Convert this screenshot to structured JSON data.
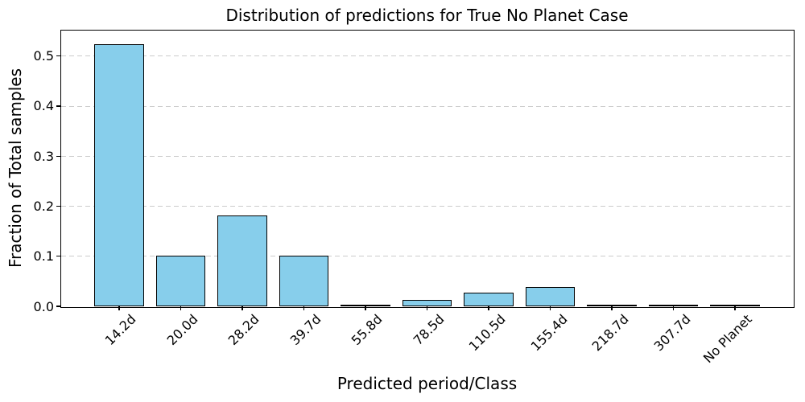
{
  "chart_data": {
    "type": "bar",
    "title": "Distribution of predictions for True No Planet Case",
    "xlabel": "Predicted period/Class",
    "ylabel": "Fraction of Total samples",
    "categories": [
      "14.2d",
      "20.0d",
      "28.2d",
      "39.7d",
      "55.8d",
      "78.5d",
      "110.5d",
      "155.4d",
      "218.7d",
      "307.7d",
      "No Planet"
    ],
    "values": [
      0.524,
      0.102,
      0.181,
      0.102,
      0.002,
      0.013,
      0.028,
      0.038,
      0.002,
      0.001,
      0.001
    ],
    "yticks": [
      0.0,
      0.1,
      0.2,
      0.3,
      0.4,
      0.5
    ],
    "ytick_labels": [
      "0.0",
      "0.1",
      "0.2",
      "0.3",
      "0.4",
      "0.5"
    ],
    "ylim": [
      0,
      0.551
    ],
    "x_tick_rotation": 45,
    "grid": "horizontal-dashed",
    "legend": "none",
    "bar_color": "#87CEEB",
    "bar_edge_color": "#000000",
    "grid_color": "#cccccc"
  }
}
